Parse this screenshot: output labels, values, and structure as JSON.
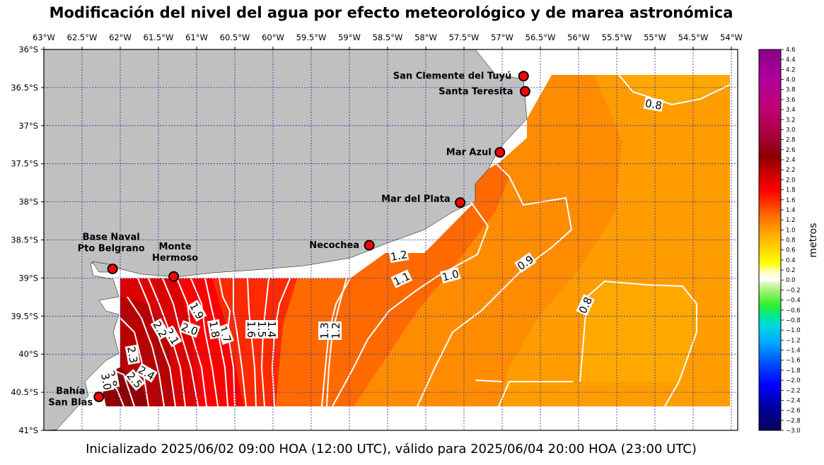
{
  "title": "Modificación del nivel del agua por efecto meteorológico y de marea astronómica",
  "footer": "Inicializado 2025/06/02 09:00 HOA (12:00 UTC), válido para 2025/06/04 20:00 HOA (23:00 UTC)",
  "lon_ticks": [
    "63°W",
    "62.5°W",
    "62°W",
    "61.5°W",
    "61°W",
    "60.5°W",
    "60°W",
    "59.5°W",
    "59°W",
    "58.5°W",
    "58°W",
    "57.5°W",
    "57°W",
    "56.5°W",
    "56°W",
    "55.5°W",
    "55°W",
    "54.5°W",
    "54°W"
  ],
  "lat_ticks": [
    "36°S",
    "36.5°S",
    "37°S",
    "37.5°S",
    "38°S",
    "38.5°S",
    "39°S",
    "39.5°S",
    "40°S",
    "40.5°S",
    "41°S"
  ],
  "colorbar": {
    "label": "metros",
    "min": -3.0,
    "max": 4.6,
    "ticks": [
      "4.6",
      "4.4",
      "4.2",
      "4.0",
      "3.8",
      "3.6",
      "3.4",
      "3.2",
      "3.0",
      "2.8",
      "2.6",
      "2.4",
      "2.2",
      "2.0",
      "1.8",
      "1.6",
      "1.4",
      "1.2",
      "1.0",
      "0.8",
      "0.6",
      "0.4",
      "0.2",
      "0.0",
      "−0.2",
      "−0.4",
      "−0.6",
      "−0.8",
      "−1.0",
      "−1.2",
      "−1.4",
      "−1.6",
      "−1.8",
      "−2.0",
      "−2.2",
      "−2.4",
      "−2.6",
      "−2.8",
      "−3.0"
    ]
  },
  "colors": {
    "land": "#c0c0c0",
    "grid": "#2a2a9a",
    "contour": "#ffffff"
  },
  "cities": [
    {
      "name": "San Clemente del Tuyú",
      "lon": -56.72,
      "lat": -36.35
    },
    {
      "name": "Santa Teresita",
      "lon": -56.7,
      "lat": -36.55
    },
    {
      "name": "Mar Azul",
      "lon": -57.03,
      "lat": -37.35
    },
    {
      "name": "Mar del Plata",
      "lon": -57.55,
      "lat": -38.01
    },
    {
      "name": "Necochea",
      "lon": -58.74,
      "lat": -38.57
    },
    {
      "name": "Base Naval Pto Belgrano",
      "line1": "Base Naval",
      "line2": "Pto Belgrano",
      "lon": -62.1,
      "lat": -38.88
    },
    {
      "name": "Monte Hermoso",
      "line1": "Monte",
      "line2": "Hermoso",
      "lon": -61.3,
      "lat": -38.98
    },
    {
      "name": "Bahía San Blas",
      "line1": "Bahía",
      "line2": "San Blas",
      "lon": -62.28,
      "lat": -40.56
    }
  ],
  "contour_labels": [
    "0.8",
    "0.9",
    "0.8",
    "1.0",
    "1.1",
    "1.2",
    "1.3",
    "1.2",
    "1.4",
    "1.5",
    "1.6",
    "1.7",
    "1.8",
    "1.9",
    "2.0",
    "2.1",
    "2.2",
    "2.3",
    "2.4",
    "2.5",
    "2.8",
    "3.0"
  ]
}
